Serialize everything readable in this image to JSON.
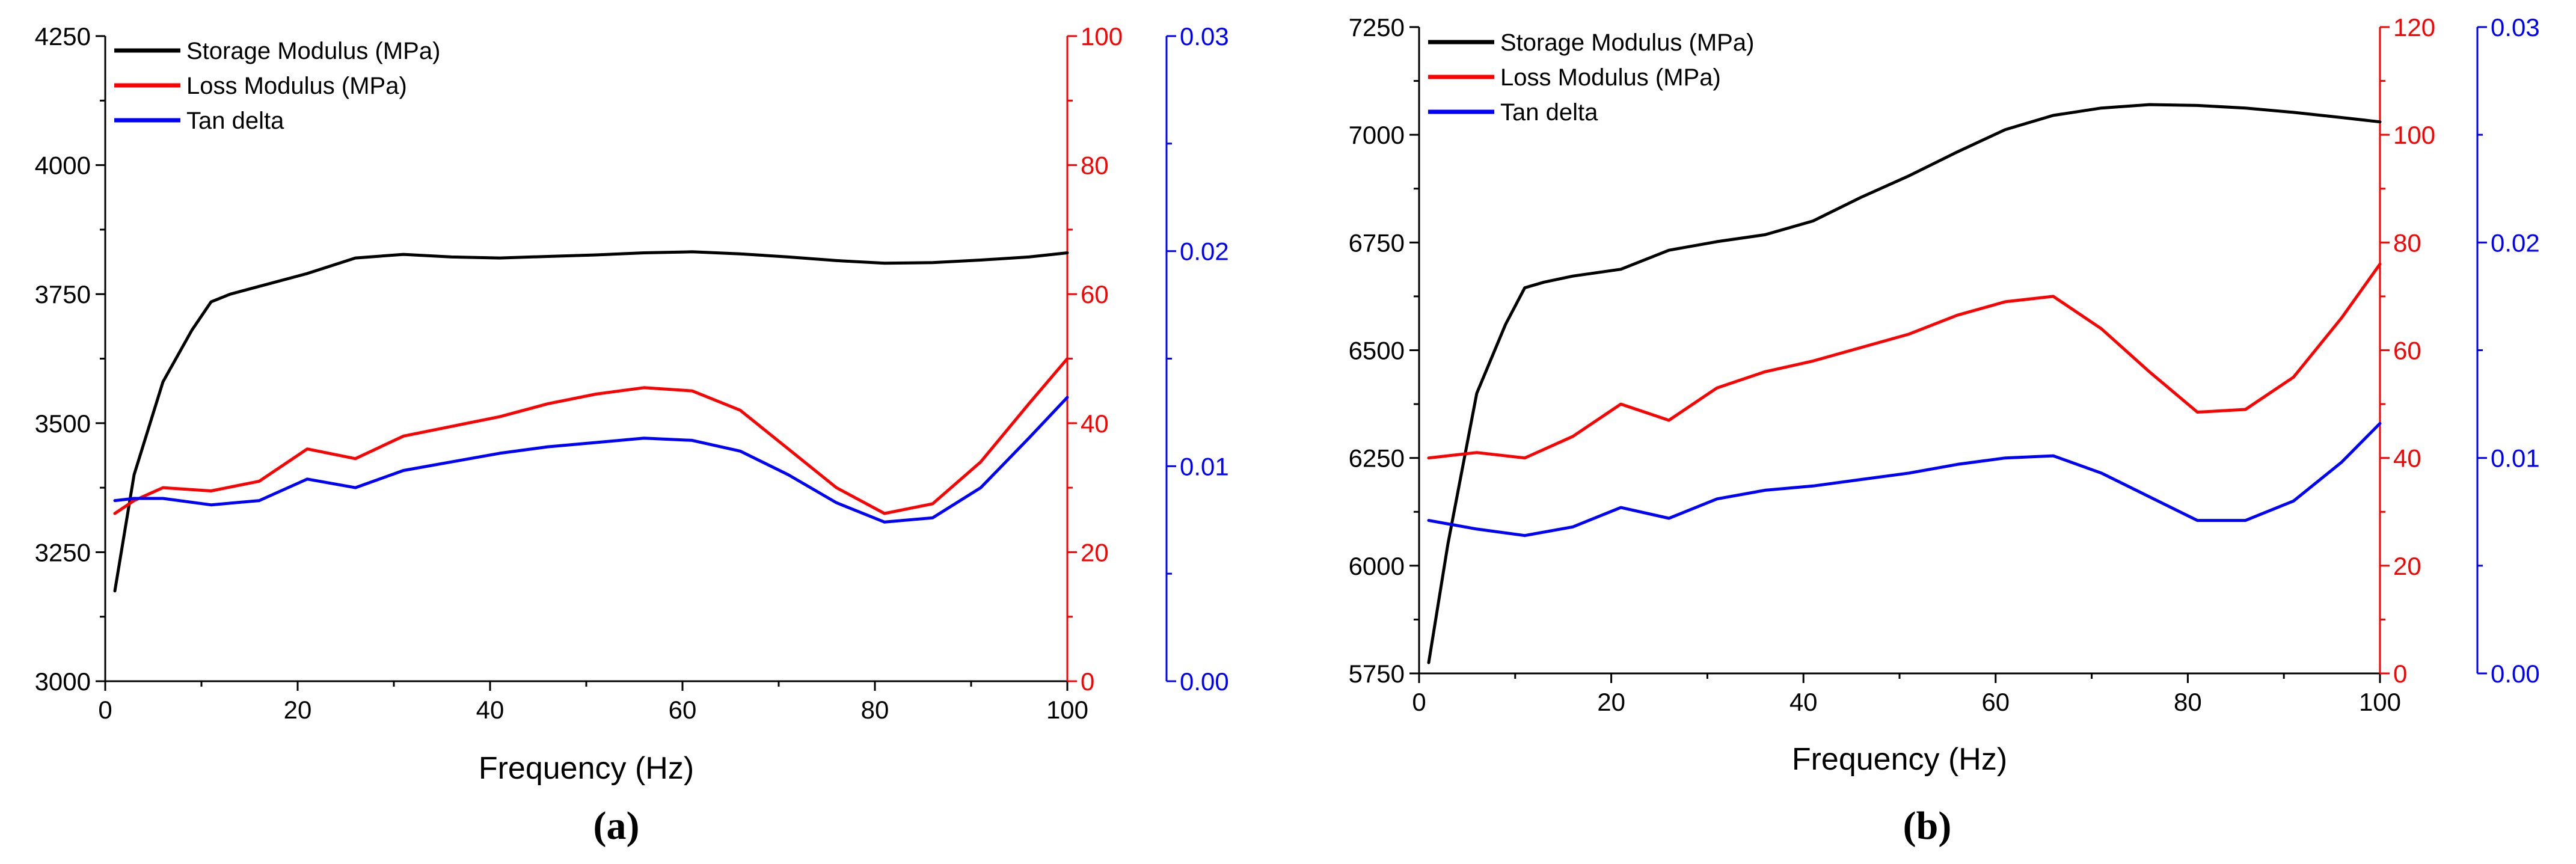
{
  "colors": {
    "storage": "#000000",
    "loss": "#ff0000",
    "tan": "#0000ff",
    "axis": "#000000"
  },
  "chart_data": [
    {
      "type": "line",
      "panel_label": "(a)",
      "xlabel": "Frequency (Hz)",
      "xlim": [
        0,
        100
      ],
      "xticks": [
        0,
        20,
        40,
        60,
        80,
        100
      ],
      "axes": {
        "left": {
          "label": "",
          "range": [
            3000,
            4250
          ],
          "ticks": [
            3000,
            3250,
            3500,
            3750,
            4000,
            4250
          ],
          "decimals": 0
        },
        "right1": {
          "label": "",
          "range": [
            0,
            100
          ],
          "ticks": [
            0,
            20,
            40,
            60,
            80,
            100
          ],
          "decimals": 0
        },
        "right2": {
          "label": "",
          "range": [
            0,
            0.03
          ],
          "ticks": [
            0,
            0.01,
            0.02,
            0.03
          ],
          "decimals": 2
        }
      },
      "legend": [
        "Storage Modulus (MPa)",
        "Loss Modulus (MPa)",
        "Tan delta"
      ],
      "legend_position": "top-left",
      "series": [
        {
          "name": "Storage Modulus (MPa)",
          "color": "#000000",
          "axis": "left",
          "x": [
            1,
            3,
            6,
            9,
            11,
            13,
            16,
            21,
            26,
            31,
            36,
            41,
            46,
            51,
            56,
            61,
            66,
            71,
            76,
            81,
            86,
            91,
            96,
            100
          ],
          "y": [
            3175,
            3400,
            3580,
            3680,
            3735,
            3750,
            3765,
            3790,
            3820,
            3827,
            3822,
            3820,
            3823,
            3826,
            3830,
            3832,
            3828,
            3822,
            3815,
            3810,
            3811,
            3816,
            3822,
            3830
          ]
        },
        {
          "name": "Loss Modulus (MPa)",
          "color": "#ff0000",
          "axis": "right1",
          "x": [
            1,
            3,
            6,
            11,
            16,
            21,
            26,
            31,
            36,
            41,
            46,
            51,
            56,
            61,
            66,
            71,
            76,
            81,
            86,
            91,
            96,
            100
          ],
          "y": [
            26,
            28,
            30,
            29.5,
            31,
            36,
            34.5,
            38,
            39.5,
            41,
            43,
            44.5,
            45.5,
            45,
            42,
            36,
            30,
            26,
            27.5,
            34,
            43,
            50
          ]
        },
        {
          "name": "Tan delta",
          "color": "#0000ff",
          "axis": "right2",
          "x": [
            1,
            3,
            6,
            11,
            16,
            21,
            26,
            31,
            36,
            41,
            46,
            51,
            56,
            61,
            66,
            71,
            76,
            81,
            86,
            91,
            96,
            100
          ],
          "y": [
            0.0084,
            0.0085,
            0.0085,
            0.0082,
            0.0084,
            0.0094,
            0.009,
            0.0098,
            0.0102,
            0.0106,
            0.0109,
            0.0111,
            0.0113,
            0.0112,
            0.0107,
            0.0096,
            0.0083,
            0.0074,
            0.0076,
            0.009,
            0.0113,
            0.0132
          ]
        }
      ]
    },
    {
      "type": "line",
      "panel_label": "(b)",
      "xlabel": "Frequency (Hz)",
      "xlim": [
        0,
        100
      ],
      "xticks": [
        0,
        20,
        40,
        60,
        80,
        100
      ],
      "axes": {
        "left": {
          "label": "",
          "range": [
            5750,
            7250
          ],
          "ticks": [
            5750,
            6000,
            6250,
            6500,
            6750,
            7000,
            7250
          ],
          "decimals": 0
        },
        "right1": {
          "label": "",
          "range": [
            0,
            120
          ],
          "ticks": [
            0,
            20,
            40,
            60,
            80,
            100,
            120
          ],
          "decimals": 0
        },
        "right2": {
          "label": "",
          "range": [
            0,
            0.03
          ],
          "ticks": [
            0,
            0.01,
            0.02,
            0.03
          ],
          "decimals": 2
        }
      },
      "legend": [
        "Storage Modulus (MPa)",
        "Loss Modulus (MPa)",
        "Tan delta"
      ],
      "legend_position": "top-left",
      "series": [
        {
          "name": "Storage Modulus (MPa)",
          "color": "#000000",
          "axis": "left",
          "x": [
            1,
            3,
            6,
            9,
            11,
            13,
            16,
            21,
            26,
            31,
            36,
            41,
            46,
            51,
            56,
            61,
            66,
            71,
            76,
            81,
            86,
            91,
            96,
            100
          ],
          "y": [
            5775,
            6050,
            6400,
            6560,
            6645,
            6658,
            6672,
            6688,
            6732,
            6752,
            6768,
            6800,
            6855,
            6905,
            6960,
            7012,
            7045,
            7062,
            7070,
            7068,
            7062,
            7052,
            7040,
            7030
          ]
        },
        {
          "name": "Loss Modulus (MPa)",
          "color": "#ff0000",
          "axis": "right1",
          "x": [
            1,
            6,
            11,
            16,
            21,
            26,
            31,
            36,
            41,
            46,
            51,
            56,
            61,
            66,
            71,
            76,
            81,
            86,
            91,
            96,
            100
          ],
          "y": [
            40,
            41,
            40,
            44,
            50,
            47,
            53,
            56,
            58,
            60.5,
            63,
            66.5,
            69,
            70,
            64,
            56,
            48.5,
            49,
            55,
            66,
            76
          ]
        },
        {
          "name": "Tan delta",
          "color": "#0000ff",
          "axis": "right2",
          "x": [
            1,
            6,
            11,
            16,
            21,
            26,
            31,
            36,
            41,
            46,
            51,
            56,
            61,
            66,
            71,
            76,
            81,
            86,
            91,
            96,
            100
          ],
          "y": [
            0.0071,
            0.0067,
            0.0064,
            0.0068,
            0.0077,
            0.0072,
            0.0081,
            0.0085,
            0.0087,
            0.009,
            0.0093,
            0.0097,
            0.01,
            0.0101,
            0.0093,
            0.0082,
            0.0071,
            0.0071,
            0.008,
            0.0098,
            0.0116
          ]
        }
      ]
    }
  ]
}
